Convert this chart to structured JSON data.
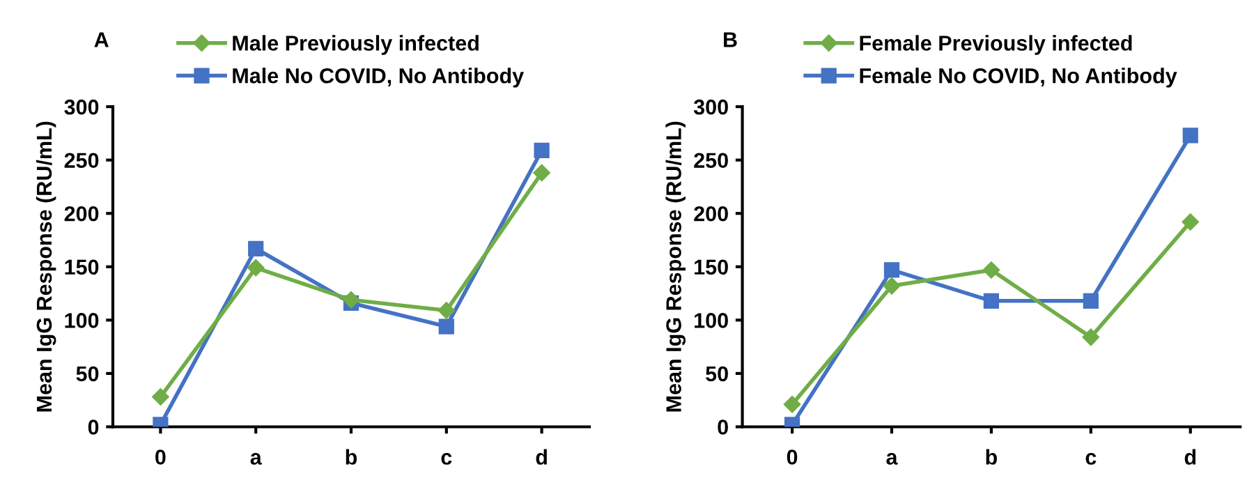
{
  "chart_data": [
    {
      "type": "line",
      "title": "A",
      "ylabel": "Mean IgG Response (RU/mL)",
      "categories": [
        "0",
        "a",
        "b",
        "c",
        "d"
      ],
      "ylim": [
        0,
        300
      ],
      "yticks": [
        0,
        50,
        100,
        150,
        200,
        250,
        300
      ],
      "legend": "top",
      "grid": false,
      "series": [
        {
          "name": "Male Previously infected",
          "color": "#70ad47",
          "marker": "diamond",
          "values": [
            28,
            149,
            119,
            109,
            238
          ]
        },
        {
          "name": "Male No COVID, No Antibody",
          "color": "#4472c4",
          "marker": "square",
          "values": [
            2,
            167,
            116,
            94,
            259
          ]
        }
      ]
    },
    {
      "type": "line",
      "title": "B",
      "ylabel": "Mean IgG Response (RU/mL)",
      "categories": [
        "0",
        "a",
        "b",
        "c",
        "d"
      ],
      "ylim": [
        0,
        300
      ],
      "yticks": [
        0,
        50,
        100,
        150,
        200,
        250,
        300
      ],
      "legend": "top",
      "grid": false,
      "series": [
        {
          "name": "Female Previously infected",
          "color": "#70ad47",
          "marker": "diamond",
          "values": [
            21,
            132,
            147,
            84,
            192
          ]
        },
        {
          "name": "Female No COVID, No Antibody",
          "color": "#4472c4",
          "marker": "square",
          "values": [
            2,
            147,
            118,
            118,
            273
          ]
        }
      ]
    }
  ]
}
